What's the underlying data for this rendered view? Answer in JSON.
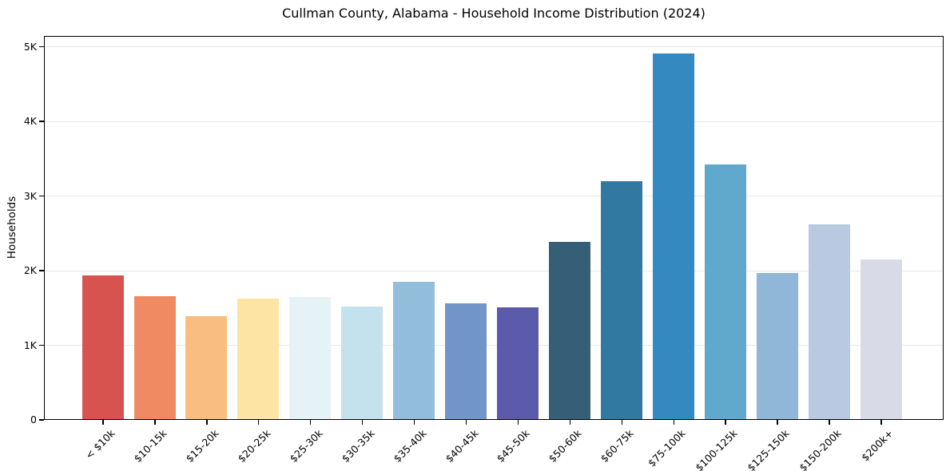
{
  "page": {
    "background_color": "#ffffff",
    "text_color": "#000000"
  },
  "chart_data": {
    "type": "bar",
    "title": "Cullman County, Alabama - Household Income Distribution (2024)",
    "xlabel": "",
    "ylabel": "Households",
    "categories": [
      "< $10k",
      "$10-15k",
      "$15-20k",
      "$20-25k",
      "$25-30k",
      "$30-35k",
      "$35-40k",
      "$40-45k",
      "$45-50k",
      "$50-60k",
      "$60-75k",
      "$75-100k",
      "$100-125k",
      "$125-150k",
      "$150-200k",
      "$200k+"
    ],
    "values": [
      1930,
      1650,
      1380,
      1620,
      1640,
      1510,
      1840,
      1550,
      1500,
      2370,
      3190,
      4900,
      3410,
      1960,
      2610,
      2140
    ],
    "bar_colors": [
      "#d6534f",
      "#f08a63",
      "#fabd80",
      "#fde3a4",
      "#e5f2f6",
      "#c4e1ee",
      "#92bddb",
      "#7195c8",
      "#5c5aaa",
      "#355f77",
      "#3179a0",
      "#3389c0",
      "#60a8ce",
      "#90b6d8",
      "#bac9e2",
      "#d9dae8"
    ],
    "ylim": [
      0,
      5000
    ],
    "yticks": [
      0,
      1000,
      2000,
      3000,
      4000,
      5000
    ],
    "ytick_labels": [
      "0",
      "1K",
      "2K",
      "3K",
      "4K",
      "5K"
    ],
    "grid": "horizontal",
    "grid_color": "#e7e7e7",
    "axis_color": "#000000",
    "legend": "none"
  }
}
